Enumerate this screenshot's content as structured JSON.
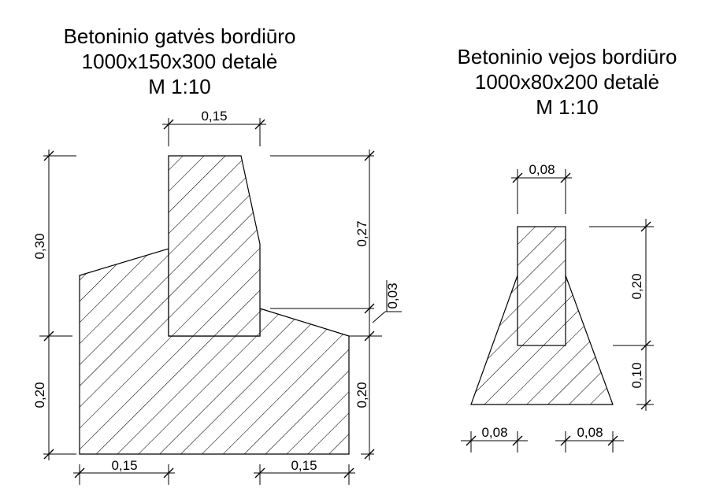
{
  "left_detail": {
    "title_line1": "Betoninio gatvės bordiūro",
    "title_line2": "1000x150x300 detalė",
    "title_line3": "M 1:10",
    "dim_top_width": "0,15",
    "dim_left_upper": "0,30",
    "dim_left_lower": "0,20",
    "dim_right_upper": "0,27",
    "dim_right_small": "0,03",
    "dim_right_lower": "0,20",
    "dim_bottom_left": "0,15",
    "dim_bottom_right": "0,15"
  },
  "right_detail": {
    "title_line1": "Betoninio vejos bordiūro",
    "title_line2": "1000x80x200 detalė",
    "title_line3": "M 1:10",
    "dim_top_width": "0,08",
    "dim_right_upper": "0,20",
    "dim_right_lower": "0,10",
    "dim_bottom_left": "0,08",
    "dim_bottom_right": "0,08"
  },
  "colors": {
    "line": "#000000",
    "background": "#ffffff"
  }
}
